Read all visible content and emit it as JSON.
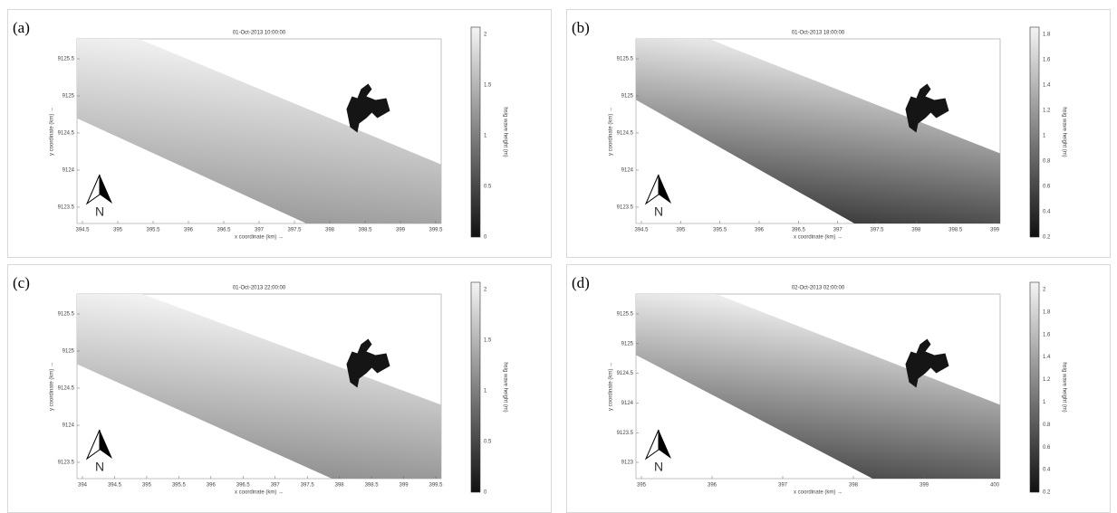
{
  "panels": [
    {
      "label": "(a)",
      "title": "01-Oct-2013 10:00:00",
      "xlabel": "x coordinate (km) →",
      "ylabel": "y coordinate (km) →",
      "xticks": [
        "394.5",
        "395",
        "395.5",
        "396",
        "396.5",
        "397",
        "397.5",
        "398",
        "398.5",
        "399",
        "399.5"
      ],
      "yticks": [
        "9125.5",
        "9125",
        "9124.5",
        "9124",
        "9123.5"
      ],
      "colorbar_label": "hsig wave height (m)",
      "colorbar_ticks": [
        "2",
        "1.5",
        "1",
        "0.5",
        "0"
      ],
      "north": "N"
    },
    {
      "label": "(b)",
      "title": "01-Oct-2013 18:00:00",
      "xlabel": "x coordinate (km) →",
      "ylabel": "y coordinate (km) →",
      "xticks": [
        "394.5",
        "395",
        "395.5",
        "396",
        "396.5",
        "397",
        "397.5",
        "398",
        "398.5",
        "399"
      ],
      "yticks": [
        "9125.5",
        "9125",
        "9124.5",
        "9124",
        "9123.5"
      ],
      "colorbar_label": "hsig wave height (m)",
      "colorbar_ticks": [
        "1.8",
        "1.6",
        "1.4",
        "1.2",
        "1",
        "0.8",
        "0.6",
        "0.4",
        "0.2"
      ],
      "north": "N"
    },
    {
      "label": "(c)",
      "title": "01-Oct-2013 22:00:00",
      "xlabel": "x coordinate (km) →",
      "ylabel": "y coordinate (km) →",
      "xticks": [
        "394",
        "394.5",
        "395",
        "395.5",
        "396",
        "396.5",
        "397",
        "397.5",
        "398",
        "398.5",
        "399",
        "399.5"
      ],
      "yticks": [
        "9125.5",
        "9125",
        "9124.5",
        "9124",
        "9123.5"
      ],
      "colorbar_label": "hsig wave height (m)",
      "colorbar_ticks": [
        "2",
        "1.5",
        "1",
        "0.5",
        "0"
      ],
      "north": "N"
    },
    {
      "label": "(d)",
      "title": "02-Oct-2013 02:00:00",
      "xlabel": "x coordinate (km) →",
      "ylabel": "y coordinate (km) →",
      "xticks": [
        "395",
        "396",
        "397",
        "398",
        "399",
        "400"
      ],
      "yticks": [
        "9125.5",
        "9125",
        "9124.5",
        "9124",
        "9123.5",
        "9123"
      ],
      "colorbar_label": "hsig wave height (m)",
      "colorbar_ticks": [
        "2",
        "1.8",
        "1.6",
        "1.4",
        "1.2",
        "1",
        "0.8",
        "0.6",
        "0.4",
        "0.2"
      ],
      "north": "N"
    }
  ]
}
